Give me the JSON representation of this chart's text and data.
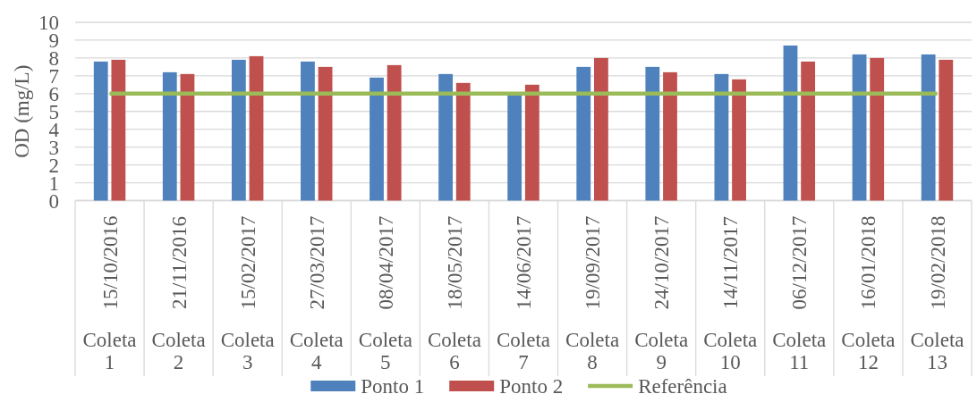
{
  "chart_data": {
    "type": "bar",
    "ylabel": "OD (mg/L)",
    "categories": [
      "15/10/2016\nColeta 1",
      "21/11/2016\nColeta 2",
      "15/02/2017\nColeta 3",
      "27/03/2017\nColeta 4",
      "08/04/2017\nColeta 5",
      "18/05/2017\nColeta 6",
      "14/06/2017\nColeta 7",
      "19/09/2017\nColeta 8",
      "24/10/2017\nColeta 9",
      "14/11/2017\nColeta 10",
      "06/12/2017\nColeta 11",
      "16/01/2018\nColeta 12",
      "19/02/2018\nColeta 13"
    ],
    "series": [
      {
        "name": "Ponto 1",
        "color": "#4f81bd",
        "values": [
          7.8,
          7.2,
          7.9,
          7.8,
          6.9,
          7.1,
          5.9,
          7.5,
          7.5,
          7.1,
          8.7,
          8.2,
          8.2
        ]
      },
      {
        "name": "Ponto 2",
        "color": "#c0504d",
        "values": [
          7.9,
          7.1,
          8.1,
          7.5,
          7.6,
          6.6,
          6.5,
          8.0,
          7.2,
          6.8,
          7.8,
          8.0,
          7.9
        ]
      },
      {
        "name": "Referência",
        "type": "line",
        "color": "#9bbb59",
        "values": [
          6,
          6,
          6,
          6,
          6,
          6,
          6,
          6,
          6,
          6,
          6,
          6,
          6
        ]
      }
    ],
    "ylim": [
      0,
      10
    ],
    "yticks": [
      0,
      1,
      2,
      3,
      4,
      5,
      6,
      7,
      8,
      9,
      10
    ],
    "grid": "y",
    "legend": "bottom"
  }
}
